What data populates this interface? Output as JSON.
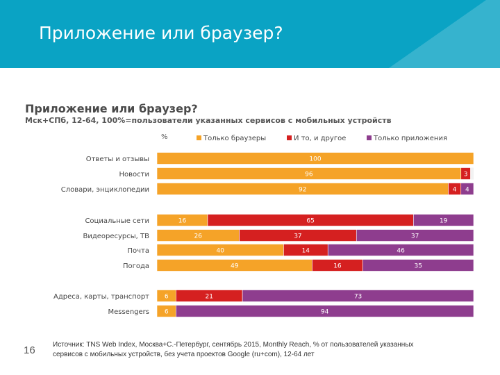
{
  "slide": {
    "title": "Приложение или браузер?",
    "number": "16",
    "source_line1": "Источник: TNS Web Index, Москва+С.-Петербург, сентябрь 2015, Monthly Reach, % от пользователей указанных",
    "source_line2": "сервисов с мобильных устройств, без учета проектов Google (ru+com), 12-64 лет"
  },
  "colors": {
    "header": "#0aa3c4",
    "browsers": "#f5a328",
    "both": "#d52020",
    "apps": "#8e3d8e"
  },
  "chart_data": {
    "type": "bar",
    "orientation": "horizontal",
    "stacked": true,
    "title": "Приложение или браузер?",
    "subtitle": "Мск+СПб, 12-64, 100%=пользователи указанных сервисов с мобильных устройств",
    "unit_label": "%",
    "xlim": [
      0,
      100
    ],
    "legend_position": "top",
    "categories": [
      "Ответы и отзывы",
      "Новости",
      "Словари, энциклопедии",
      "Социальные сети",
      "Видеоресурсы, ТВ",
      "Почта",
      "Погода",
      "Адреса, карты, транспорт",
      "Messengers"
    ],
    "groups": [
      [
        0,
        1,
        2
      ],
      [
        3,
        4,
        5,
        6
      ],
      [
        7,
        8
      ]
    ],
    "series": [
      {
        "name": "Только браузеры",
        "values": [
          100,
          96,
          92,
          16,
          26,
          40,
          49,
          6,
          6
        ]
      },
      {
        "name": "И то, и другое",
        "values": [
          0,
          3,
          4,
          65,
          37,
          14,
          16,
          21,
          0
        ]
      },
      {
        "name": "Только приложения",
        "values": [
          0,
          0,
          4,
          19,
          37,
          46,
          35,
          73,
          94
        ]
      }
    ]
  }
}
